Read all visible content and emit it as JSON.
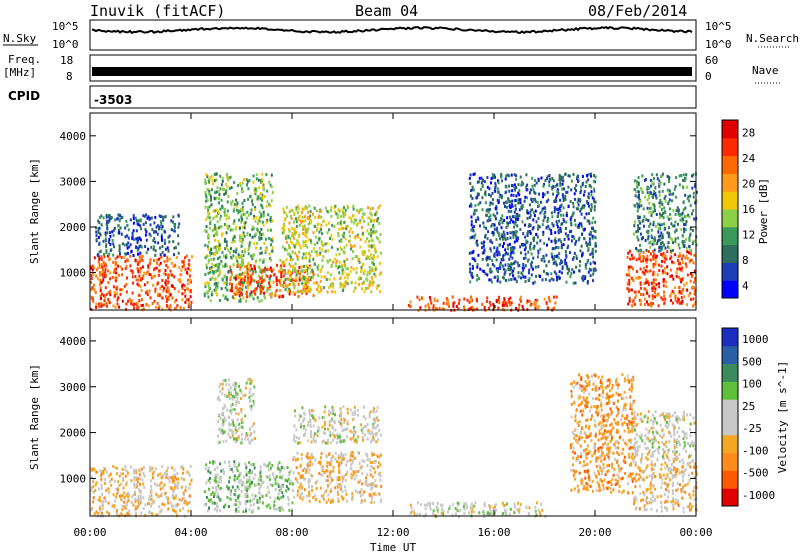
{
  "header": {
    "station": "Inuvik (fitACF)",
    "beam": "Beam 04",
    "date": "08/Feb/2014"
  },
  "panels": {
    "nsky": {
      "left_label": "N.Sky",
      "right_label": "N.Search",
      "tick_top": "10^5",
      "tick_bottom": "10^0",
      "tick_top_right": "10^5",
      "tick_bottom_right": "10^0"
    },
    "freq": {
      "left_label_1": "Freq.",
      "left_label_2": "[MHz]",
      "tick_top": "18",
      "tick_bottom": "8",
      "right_label": "Nave",
      "tick_top_right": "60",
      "tick_bottom_right": "0"
    },
    "cpid": {
      "label": "CPID",
      "value": "-3503"
    }
  },
  "chart_data": [
    {
      "type": "heatmap",
      "title": "Power",
      "ylabel": "Slant Range [km]",
      "xlabel": "Time UT",
      "x_ticks": [
        "00:00",
        "04:00",
        "08:00",
        "12:00",
        "16:00",
        "20:00",
        "00:00"
      ],
      "x_range_hours": [
        0,
        24
      ],
      "y_ticks": [
        1000,
        2000,
        3000,
        4000
      ],
      "ylim": [
        180,
        4500
      ],
      "colorbar": {
        "label": "Power [dB]",
        "ticks": [
          "28",
          "24",
          "20",
          "16",
          "12",
          "8",
          "4"
        ],
        "range": [
          0,
          30
        ]
      },
      "colors": [
        "#0000ff",
        "#1c3fb8",
        "#2d6e5c",
        "#3a9a5a",
        "#8bd046",
        "#f2c70a",
        "#ff9a1a",
        "#ff6a00",
        "#ff2a00",
        "#e00000"
      ],
      "echo_regions": [
        {
          "t_start": 0.0,
          "t_end": 4.0,
          "r_min": 200,
          "r_max": 1400,
          "level": 27
        },
        {
          "t_start": 0.2,
          "t_end": 3.5,
          "r_min": 1400,
          "r_max": 2300,
          "level": 8
        },
        {
          "t_start": 4.5,
          "t_end": 7.2,
          "r_min": 400,
          "r_max": 3200,
          "level": 14
        },
        {
          "t_start": 5.5,
          "t_end": 9.0,
          "r_min": 500,
          "r_max": 1200,
          "level": 27
        },
        {
          "t_start": 7.5,
          "t_end": 11.5,
          "r_min": 600,
          "r_max": 2500,
          "level": 18
        },
        {
          "t_start": 12.5,
          "t_end": 18.5,
          "r_min": 200,
          "r_max": 500,
          "level": 26
        },
        {
          "t_start": 15.0,
          "t_end": 20.0,
          "r_min": 800,
          "r_max": 3200,
          "level": 8
        },
        {
          "t_start": 21.2,
          "t_end": 24.0,
          "r_min": 300,
          "r_max": 1500,
          "level": 27
        },
        {
          "t_start": 21.5,
          "t_end": 24.0,
          "r_min": 1500,
          "r_max": 3200,
          "level": 9
        }
      ]
    },
    {
      "type": "heatmap",
      "title": "Velocity",
      "ylabel": "Slant Range [km]",
      "xlabel": "Time UT",
      "x_ticks": [
        "00:00",
        "04:00",
        "08:00",
        "12:00",
        "16:00",
        "20:00",
        "00:00"
      ],
      "x_range_hours": [
        0,
        24
      ],
      "y_ticks": [
        1000,
        2000,
        3000,
        4000
      ],
      "ylim": [
        180,
        4500
      ],
      "colorbar": {
        "label": "Velocity [m s^-1]",
        "ticks": [
          "1000",
          "500",
          "100",
          "25",
          "-25",
          "-100",
          "-500",
          "-1000"
        ],
        "range": [
          -1000,
          1000
        ]
      },
      "colors": [
        "#e00000",
        "#ff5a00",
        "#ff8c1a",
        "#f5a623",
        "#c8c8c8",
        "#c8c8c8",
        "#5fbf3a",
        "#3d8a5f",
        "#2a5fa8",
        "#1a2fbf"
      ],
      "echo_regions": [
        {
          "t_start": 0.0,
          "t_end": 4.0,
          "r_min": 200,
          "r_max": 1300,
          "velocity": -200
        },
        {
          "t_start": 4.5,
          "t_end": 8.0,
          "r_min": 300,
          "r_max": 1400,
          "velocity": 250
        },
        {
          "t_start": 5.0,
          "t_end": 6.5,
          "r_min": 1800,
          "r_max": 3200,
          "velocity": 150
        },
        {
          "t_start": 8.0,
          "t_end": 11.5,
          "r_min": 500,
          "r_max": 1600,
          "velocity": -200
        },
        {
          "t_start": 8.0,
          "t_end": 11.5,
          "r_min": 1800,
          "r_max": 2600,
          "velocity": 0
        },
        {
          "t_start": 12.5,
          "t_end": 18.0,
          "r_min": 200,
          "r_max": 500,
          "velocity": 200
        },
        {
          "t_start": 19.0,
          "t_end": 21.5,
          "r_min": 700,
          "r_max": 3300,
          "velocity": -400
        },
        {
          "t_start": 21.5,
          "t_end": 24.0,
          "r_min": 300,
          "r_max": 1500,
          "velocity": -180
        },
        {
          "t_start": 21.5,
          "t_end": 24.0,
          "r_min": 1500,
          "r_max": 2500,
          "velocity": 0
        }
      ]
    }
  ]
}
